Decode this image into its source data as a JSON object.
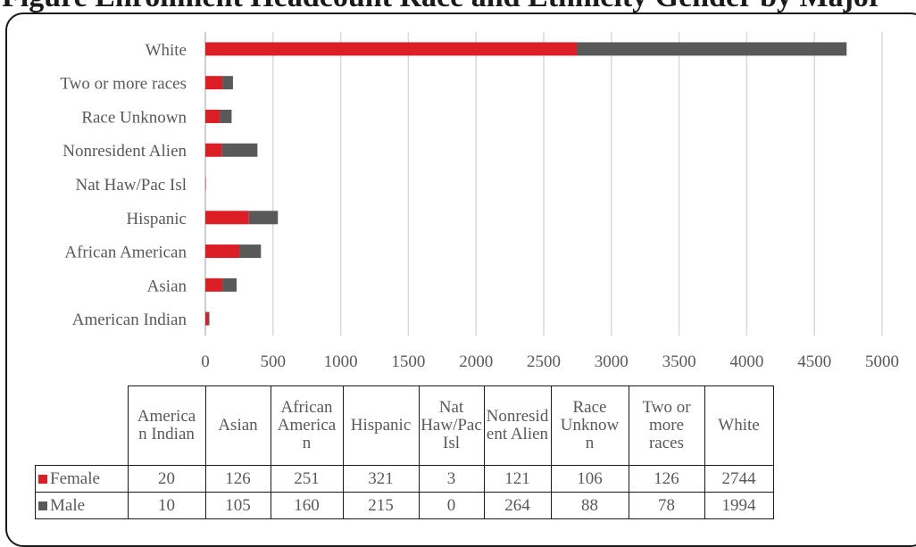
{
  "page_title": "Figure  Enrollment Headcount Race and Ethnicity Gender by Major",
  "colors": {
    "female": "#dc1f26",
    "male": "#595959",
    "grid": "#d9d9d9"
  },
  "chart_data": {
    "type": "bar",
    "orientation": "horizontal",
    "stacked": true,
    "categories": [
      "American Indian",
      "Asian",
      "African American",
      "Hispanic",
      "Nat Haw/Pac Isl",
      "Nonresident Alien",
      "Race Unknown",
      "Two or more races",
      "White"
    ],
    "series": [
      {
        "name": "Female",
        "color": "#dc1f26",
        "values": [
          20,
          126,
          251,
          321,
          3,
          121,
          106,
          126,
          2744
        ]
      },
      {
        "name": "Male",
        "color": "#595959",
        "values": [
          10,
          105,
          160,
          215,
          0,
          264,
          88,
          78,
          1994
        ]
      }
    ],
    "x_ticks": [
      "0",
      "500",
      "1000",
      "1500",
      "2000",
      "2500",
      "3000",
      "3500",
      "4000",
      "4500",
      "5000"
    ],
    "xlim": [
      0,
      5000
    ],
    "grid": true,
    "legend": "data-table",
    "table": {
      "headers": [
        "America\nn Indian",
        "Asian",
        "African\nAmerica\nn",
        "Hispanic",
        "Nat\nHaw/Pac\nIsl",
        "Nonresid\nent Alien",
        "Race\nUnknow\nn",
        "Two or\nmore\nraces",
        "White"
      ],
      "rows": [
        {
          "series": "Female",
          "cells": [
            "20",
            "126",
            "251",
            "321",
            "3",
            "121",
            "106",
            "126",
            "2744"
          ]
        },
        {
          "series": "Male",
          "cells": [
            "10",
            "105",
            "160",
            "215",
            "0",
            "264",
            "88",
            "78",
            "1994"
          ]
        }
      ]
    }
  }
}
